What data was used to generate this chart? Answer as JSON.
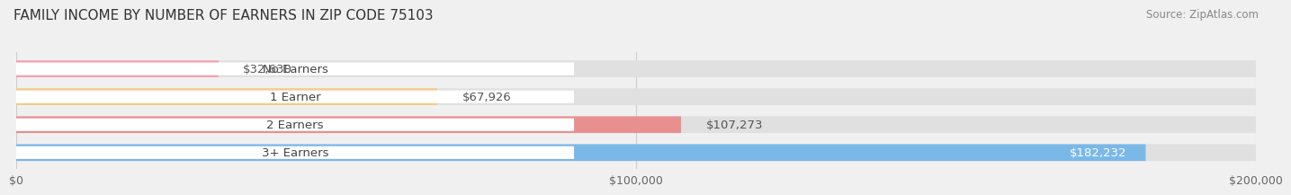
{
  "title": "FAMILY INCOME BY NUMBER OF EARNERS IN ZIP CODE 75103",
  "source": "Source: ZipAtlas.com",
  "categories": [
    "No Earners",
    "1 Earner",
    "2 Earners",
    "3+ Earners"
  ],
  "values": [
    32630,
    67926,
    107273,
    182232
  ],
  "bar_colors": [
    "#f4a0b0",
    "#f5c98a",
    "#e89090",
    "#7ab8e8"
  ],
  "value_labels": [
    "$32,630",
    "$67,926",
    "$107,273",
    "$182,232"
  ],
  "value_label_inside": [
    false,
    false,
    false,
    true
  ],
  "xlim": [
    0,
    200000
  ],
  "xticks": [
    0,
    100000,
    200000
  ],
  "xtick_labels": [
    "$0",
    "$100,000",
    "$200,000"
  ],
  "background_color": "#f0f0f0",
  "bar_bg_color": "#e0e0e0",
  "title_fontsize": 11,
  "source_fontsize": 8.5,
  "label_fontsize": 9.5,
  "value_fontsize": 9.5
}
